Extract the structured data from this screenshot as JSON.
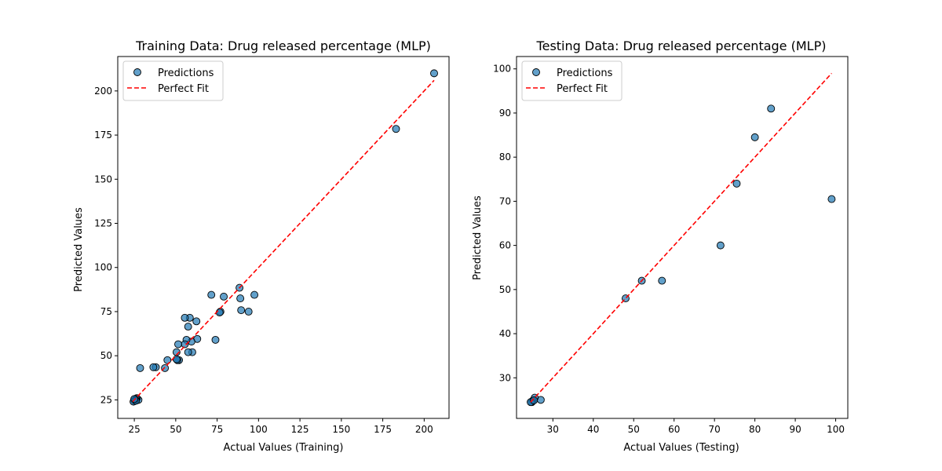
{
  "chart_data": [
    {
      "type": "scatter",
      "title": "Training Data: Drug released percentage (MLP)",
      "xlabel": "Actual Values (Training)",
      "ylabel": "Predicted Values",
      "xlim": [
        15.0,
        215.0
      ],
      "ylim": [
        14.5,
        219.5
      ],
      "xticks": [
        25,
        50,
        75,
        100,
        125,
        150,
        175,
        200
      ],
      "yticks": [
        25,
        50,
        75,
        100,
        125,
        150,
        175,
        200
      ],
      "grid": false,
      "legend": {
        "position": "top-left",
        "entries": [
          "Predictions",
          "Perfect Fit"
        ]
      },
      "series": [
        {
          "name": "Predictions",
          "kind": "scatter",
          "color": "#1f77b4",
          "points": [
            [
              206.0,
              210.0
            ],
            [
              183.0,
              178.5
            ],
            [
              97.5,
              84.5
            ],
            [
              94.0,
              75.0
            ],
            [
              89.5,
              75.8
            ],
            [
              89.0,
              82.5
            ],
            [
              88.5,
              88.5
            ],
            [
              79.0,
              83.5
            ],
            [
              77.0,
              75.0
            ],
            [
              76.5,
              74.5
            ],
            [
              74.0,
              59.0
            ],
            [
              71.5,
              84.5
            ],
            [
              63.0,
              59.5
            ],
            [
              62.5,
              69.5
            ],
            [
              60.0,
              52.0
            ],
            [
              59.5,
              58.0
            ],
            [
              58.5,
              71.5
            ],
            [
              57.5,
              66.5
            ],
            [
              57.5,
              52.0
            ],
            [
              56.5,
              59.0
            ],
            [
              55.5,
              71.5
            ],
            [
              55.5,
              56.5
            ],
            [
              52.0,
              47.5
            ],
            [
              51.5,
              56.5
            ],
            [
              51.0,
              47.5
            ],
            [
              50.5,
              52.0
            ],
            [
              50.5,
              48.0
            ],
            [
              45.0,
              47.5
            ],
            [
              43.5,
              43.0
            ],
            [
              38.0,
              43.5
            ],
            [
              36.5,
              43.5
            ],
            [
              28.5,
              43.0
            ],
            [
              27.5,
              25.0
            ],
            [
              26.5,
              26.0
            ],
            [
              26.0,
              25.5
            ],
            [
              25.5,
              25.0
            ],
            [
              25.0,
              24.5
            ],
            [
              24.5,
              24.0
            ],
            [
              26.0,
              24.5
            ],
            [
              25.0,
              25.5
            ]
          ]
        },
        {
          "name": "Perfect Fit",
          "kind": "line",
          "style": "dashed",
          "color": "#ff0000",
          "points": [
            [
              24.0,
              24.0
            ],
            [
              206.0,
              206.0
            ]
          ]
        }
      ]
    },
    {
      "type": "scatter",
      "title": "Testing Data: Drug released percentage (MLP)",
      "xlabel": "Actual Values (Testing)",
      "ylabel": "Predicted Values",
      "xlim": [
        21.0,
        103.0
      ],
      "ylim": [
        20.8,
        102.8
      ],
      "xticks": [
        30,
        40,
        50,
        60,
        70,
        80,
        90,
        100
      ],
      "yticks": [
        30,
        40,
        50,
        60,
        70,
        80,
        90,
        100
      ],
      "grid": false,
      "legend": {
        "position": "top-left",
        "entries": [
          "Predictions",
          "Perfect Fit"
        ]
      },
      "series": [
        {
          "name": "Predictions",
          "kind": "scatter",
          "color": "#1f77b4",
          "points": [
            [
              99.0,
              70.5
            ],
            [
              84.0,
              91.0
            ],
            [
              80.0,
              84.5
            ],
            [
              75.5,
              74.0
            ],
            [
              71.5,
              60.0
            ],
            [
              57.0,
              52.0
            ],
            [
              52.0,
              52.0
            ],
            [
              48.0,
              48.0
            ],
            [
              27.0,
              25.0
            ],
            [
              25.5,
              25.5
            ],
            [
              25.0,
              24.8
            ],
            [
              24.8,
              24.5
            ],
            [
              24.5,
              24.5
            ],
            [
              25.3,
              24.9
            ]
          ]
        },
        {
          "name": "Perfect Fit",
          "kind": "line",
          "style": "dashed",
          "color": "#ff0000",
          "points": [
            [
              24.5,
              24.5
            ],
            [
              99.0,
              99.0
            ]
          ]
        }
      ]
    }
  ]
}
